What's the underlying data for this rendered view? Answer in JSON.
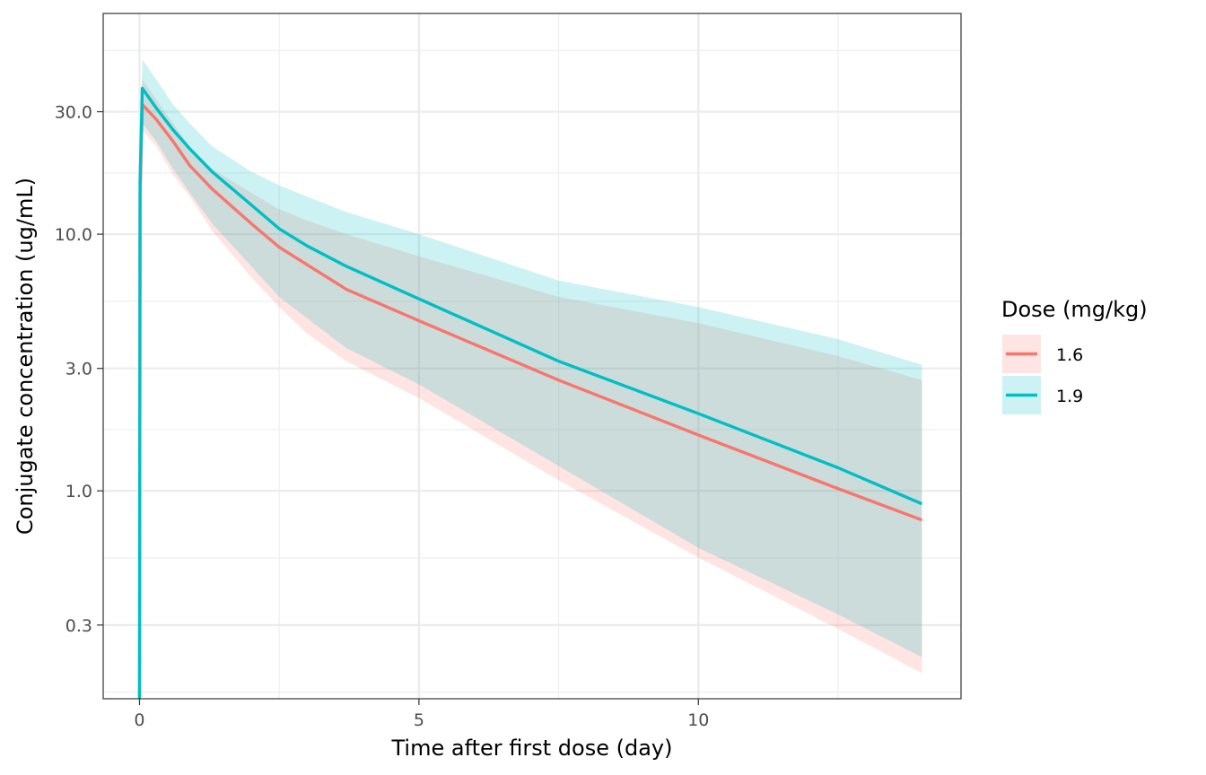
{
  "chart_data": {
    "type": "line",
    "xlabel": "Time after first dose (day)",
    "ylabel": "Conjugate concentration (ug/mL)",
    "xlim": [
      -0.65,
      14.7
    ],
    "ylim_log10": [
      -0.81,
      1.86
    ],
    "y_scale": "log10",
    "x_ticks": [
      0,
      5,
      10
    ],
    "x_tick_labels": [
      "0",
      "5",
      "10"
    ],
    "y_ticks": [
      0.3,
      1.0,
      3.0,
      10.0,
      30.0
    ],
    "y_tick_labels": [
      "0.3",
      "1.0",
      "3.0",
      "10.0",
      "30.0"
    ],
    "grid": true,
    "legend": {
      "title": "Dose (mg/kg)",
      "position": "right"
    },
    "series": [
      {
        "name": "1.6",
        "color": "#F8766D",
        "band_color": "#F8766D",
        "x": [
          0,
          0.01,
          0.05,
          0.3,
          0.6,
          0.9,
          1.3,
          2.0,
          2.5,
          3.0,
          3.7,
          5.0,
          7.5,
          10.0,
          12.5,
          14.0
        ],
        "y": [
          0.15,
          14,
          32,
          28,
          23,
          18.5,
          15,
          11,
          8.9,
          7.6,
          6.1,
          4.6,
          2.7,
          1.65,
          1.02,
          0.77
        ],
        "lower": [
          0.15,
          11,
          25.5,
          22,
          17,
          14,
          10.3,
          6.8,
          5.2,
          4.1,
          3.2,
          2.3,
          1.1,
          0.55,
          0.29,
          0.195
        ],
        "upper": [
          0.15,
          17,
          40,
          33.5,
          27,
          22,
          18,
          14.5,
          12.5,
          11.3,
          10.0,
          8.2,
          5.7,
          4.5,
          3.35,
          2.7
        ]
      },
      {
        "name": "1.9",
        "color": "#00BFC4",
        "band_color": "#00BFC4",
        "x": [
          0,
          0.01,
          0.05,
          0.3,
          0.6,
          0.9,
          1.3,
          2.0,
          2.5,
          3.0,
          3.7,
          5.0,
          7.5,
          10.0,
          12.5,
          14.0
        ],
        "y": [
          0.15,
          16,
          37,
          31,
          25.5,
          21.5,
          17.5,
          13,
          10.5,
          9.0,
          7.5,
          5.6,
          3.2,
          2.0,
          1.23,
          0.89
        ],
        "lower": [
          0.15,
          11,
          27,
          23,
          18,
          14.5,
          11,
          7.5,
          5.7,
          4.7,
          3.6,
          2.6,
          1.25,
          0.6,
          0.33,
          0.225
        ],
        "upper": [
          0.15,
          19,
          48,
          40,
          32,
          27,
          22,
          17.5,
          15.5,
          14.0,
          12.2,
          10.0,
          6.6,
          5.2,
          3.9,
          3.1
        ]
      }
    ]
  }
}
